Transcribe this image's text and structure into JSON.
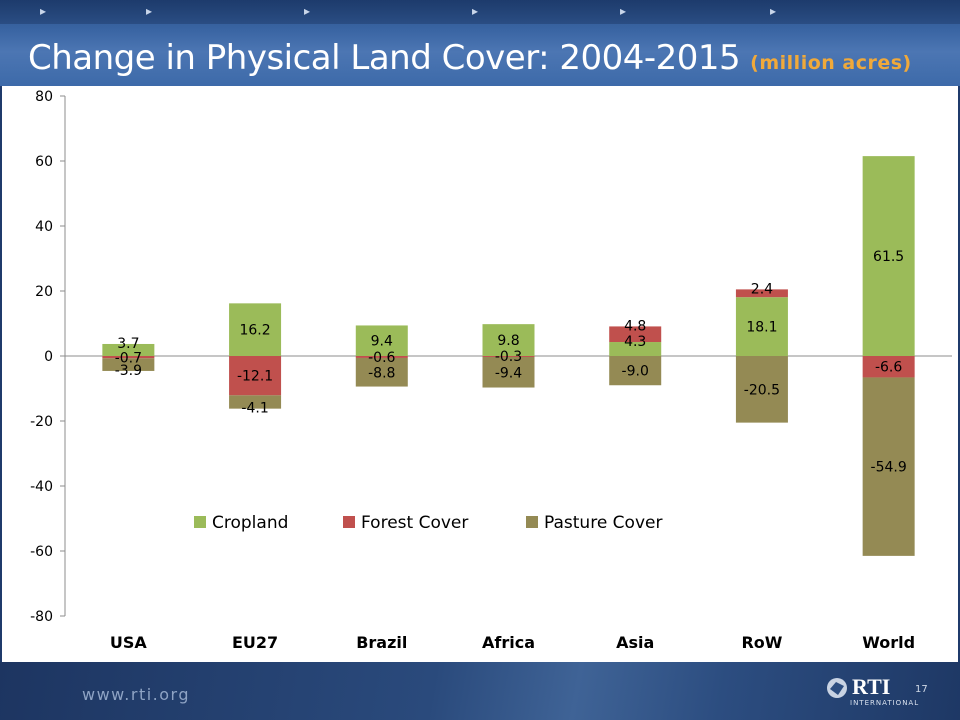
{
  "header": {
    "title": "Change in Physical Land Cover: 2004-2015",
    "subtitle": "(million acres)"
  },
  "footer": {
    "url": "www.rti.org",
    "page_number": "17",
    "logo_text": "RTI",
    "logo_sub": "INTERNATIONAL"
  },
  "colors": {
    "Cropland": "#9bbb59",
    "Forest Cover": "#c0504d",
    "Pasture Cover": "#948a54",
    "title": "#ffffff",
    "subtitle": "#f0a93a"
  },
  "chart_data": {
    "type": "bar",
    "stacked": true,
    "categories": [
      "USA",
      "EU27",
      "Brazil",
      "Africa",
      "Asia",
      "RoW",
      "World"
    ],
    "series": [
      {
        "name": "Cropland",
        "values": [
          3.7,
          16.2,
          9.4,
          9.8,
          4.3,
          18.1,
          61.5
        ]
      },
      {
        "name": "Forest Cover",
        "values": [
          -0.7,
          -12.1,
          -0.6,
          -0.3,
          4.8,
          2.4,
          -6.6
        ]
      },
      {
        "name": "Pasture Cover",
        "values": [
          -3.9,
          -4.1,
          -8.8,
          -9.4,
          -9.0,
          -20.5,
          -54.9
        ]
      }
    ],
    "ylim": [
      -80,
      80
    ],
    "yticks": [
      -80,
      -60,
      -40,
      -20,
      0,
      20,
      40,
      60,
      80
    ],
    "legend_position": "inside-bottom-center",
    "grid": false
  }
}
